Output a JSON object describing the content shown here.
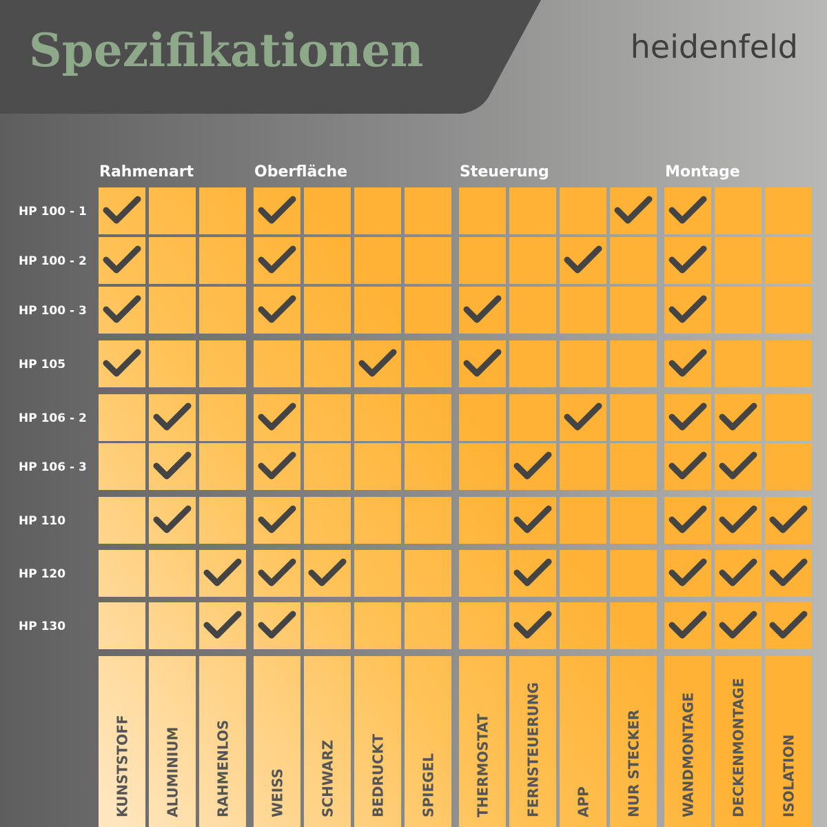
{
  "header": {
    "title": "Spezifikationen",
    "brand": "heidenfeld"
  },
  "groups": [
    {
      "label": "Rahmenart"
    },
    {
      "label": "Oberfläche"
    },
    {
      "label": "Steuerung"
    },
    {
      "label": "Montage"
    }
  ],
  "columns": [
    "KUNSTSTOFF",
    "ALUMINIUM",
    "RAHMENLOS",
    "WEISS",
    "SCHWARZ",
    "BEDRUCKT",
    "SPIEGEL",
    "THERMOSTAT",
    "FERNSTEUERUNG",
    "APP",
    "NUR STECKER",
    "WANDMONTAGE",
    "DECKENMONTAGE",
    "ISOLATION"
  ],
  "rows": [
    {
      "label": "HP 100 - 1",
      "checks": [
        true,
        false,
        false,
        true,
        false,
        false,
        false,
        false,
        false,
        false,
        true,
        true,
        false,
        false
      ]
    },
    {
      "label": "HP 100 - 2",
      "checks": [
        true,
        false,
        false,
        true,
        false,
        false,
        false,
        false,
        false,
        true,
        false,
        true,
        false,
        false
      ]
    },
    {
      "label": "HP 100 - 3",
      "checks": [
        true,
        false,
        false,
        true,
        false,
        false,
        false,
        true,
        false,
        false,
        false,
        true,
        false,
        false
      ]
    },
    {
      "label": "HP 105",
      "checks": [
        true,
        false,
        false,
        false,
        false,
        true,
        false,
        true,
        false,
        false,
        false,
        true,
        false,
        false
      ]
    },
    {
      "label": "HP 106 - 2",
      "checks": [
        false,
        true,
        false,
        true,
        false,
        false,
        false,
        false,
        false,
        true,
        false,
        true,
        true,
        false
      ]
    },
    {
      "label": "HP 106 - 3",
      "checks": [
        false,
        true,
        false,
        true,
        false,
        false,
        false,
        false,
        true,
        false,
        false,
        true,
        true,
        false
      ]
    },
    {
      "label": "HP 110",
      "checks": [
        false,
        true,
        false,
        true,
        false,
        false,
        false,
        false,
        true,
        false,
        false,
        true,
        true,
        true
      ]
    },
    {
      "label": "HP 120",
      "checks": [
        false,
        false,
        true,
        true,
        true,
        false,
        false,
        false,
        true,
        false,
        false,
        true,
        true,
        true
      ]
    },
    {
      "label": "HP 130",
      "checks": [
        false,
        false,
        true,
        true,
        false,
        false,
        false,
        false,
        true,
        false,
        false,
        true,
        true,
        true
      ]
    }
  ]
}
